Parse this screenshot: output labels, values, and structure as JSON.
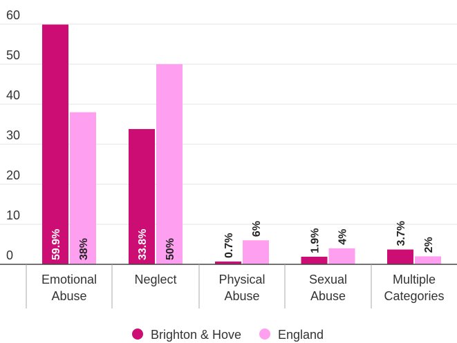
{
  "chart_data": {
    "type": "bar",
    "categories": [
      [
        "Emotional",
        "Abuse"
      ],
      [
        "Neglect"
      ],
      [
        "Physical",
        "Abuse"
      ],
      [
        "Sexual",
        "Abuse"
      ],
      [
        "Multiple",
        "Categories"
      ]
    ],
    "series": [
      {
        "name": "Brighton & Hove",
        "color": "#cc0e74",
        "values": [
          59.9,
          33.8,
          0.7,
          1.9,
          3.7
        ],
        "labels": [
          "59.9%",
          "33.8%",
          "0.7%",
          "1.9%",
          "3.7%"
        ]
      },
      {
        "name": "England",
        "color": "#ff9ff0",
        "values": [
          38,
          50,
          6,
          4,
          2
        ],
        "labels": [
          "38%",
          "50%",
          "6%",
          "4%",
          "2%"
        ]
      }
    ],
    "yticks": [
      "0",
      "10",
      "20",
      "30",
      "40",
      "50",
      "60"
    ],
    "ylim": [
      0,
      60
    ],
    "grid": true,
    "legend_position": "bottom"
  }
}
